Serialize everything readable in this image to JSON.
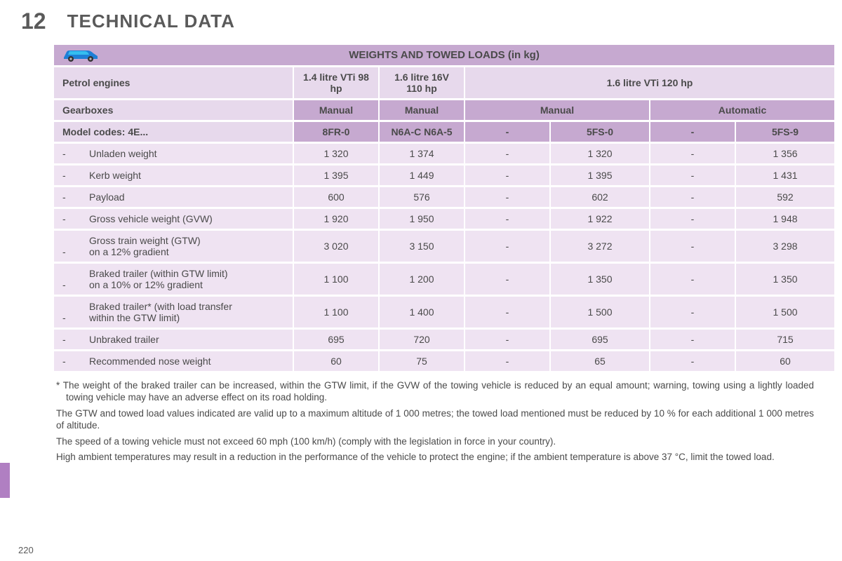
{
  "header": {
    "chapter": "12",
    "title": "TECHNICAL DATA"
  },
  "table": {
    "title": "WEIGHTS AND TOWED LOADS (in kg)",
    "engine_row_label": "Petrol engines",
    "engines": [
      "1.4 litre VTi 98 hp",
      "1.6 litre 16V 110 hp",
      "1.6 litre VTi 120 hp"
    ],
    "gearbox_row_label": "Gearboxes",
    "gearboxes": [
      "Manual",
      "Manual",
      "Manual",
      "Automatic"
    ],
    "model_row_label": "Model codes: 4E...",
    "model_codes": [
      "8FR-0",
      "N6A-C N6A-5",
      "-",
      "5FS-0",
      "-",
      "5FS-9"
    ],
    "rows": [
      {
        "label": "Unladen weight",
        "sub": "",
        "v": [
          "1 320",
          "1 374",
          "-",
          "1 320",
          "-",
          "1 356"
        ]
      },
      {
        "label": "Kerb weight",
        "sub": "",
        "v": [
          "1 395",
          "1 449",
          "-",
          "1 395",
          "-",
          "1 431"
        ]
      },
      {
        "label": "Payload",
        "sub": "",
        "v": [
          "600",
          "576",
          "-",
          "602",
          "-",
          "592"
        ]
      },
      {
        "label": "Gross vehicle weight (GVW)",
        "sub": "",
        "v": [
          "1 920",
          "1 950",
          "-",
          "1 922",
          "-",
          "1 948"
        ]
      },
      {
        "label": "Gross train weight (GTW)",
        "sub": "on a 12% gradient",
        "v": [
          "3 020",
          "3 150",
          "-",
          "3 272",
          "-",
          "3 298"
        ]
      },
      {
        "label": "Braked trailer (within GTW limit)",
        "sub": "on a 10% or 12% gradient",
        "v": [
          "1 100",
          "1 200",
          "-",
          "1 350",
          "-",
          "1 350"
        ]
      },
      {
        "label": "Braked trailer* (with load transfer",
        "sub": "within the GTW limit)",
        "v": [
          "1 100",
          "1 400",
          "-",
          "1 500",
          "-",
          "1 500"
        ]
      },
      {
        "label": "Unbraked trailer",
        "sub": "",
        "v": [
          "695",
          "720",
          "-",
          "695",
          "-",
          "715"
        ]
      },
      {
        "label": "Recommended nose weight",
        "sub": "",
        "v": [
          "60",
          "75",
          "-",
          "65",
          "-",
          "60"
        ]
      }
    ]
  },
  "notes": {
    "n1": "* The weight of the braked trailer can be increased, within the GTW limit, if the GVW of the towing vehicle is reduced by an equal amount; warning, towing using a lightly loaded towing vehicle may have an adverse effect on its road holding.",
    "n2": "The GTW and towed load values indicated are valid up to a maximum altitude of 1 000 metres; the towed load mentioned must be reduced by 10 % for each additional 1 000 metres of altitude.",
    "n3": "The speed of a towing vehicle must not exceed 60 mph (100 km/h) (comply with the legislation in force in your country).",
    "n4": "High ambient temperatures may result in a reduction in the performance of the vehicle to protect the engine; if the ambient temperature is above 37 °C, limit the towed load."
  },
  "page_number": "220",
  "colors": {
    "title_bg": "#c6a9d0",
    "hdr_light_bg": "#e7d9ec",
    "row_bg": "#efe3f2",
    "side_tab": "#b07fc2",
    "car_body": "#1e7fd6",
    "car_roof": "#34bef0"
  }
}
